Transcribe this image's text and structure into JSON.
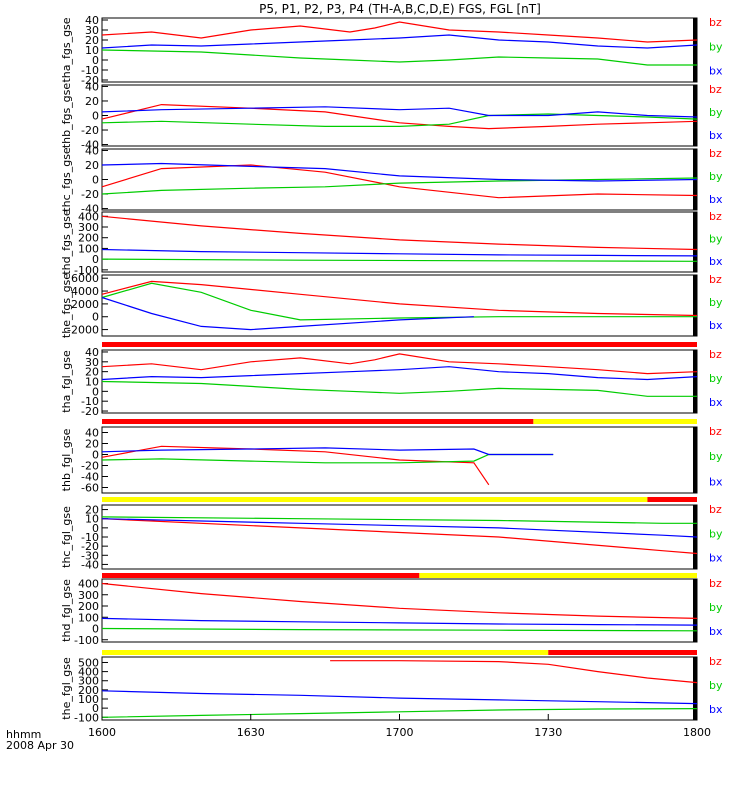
{
  "title": "P5, P1, P2, P3, P4 (TH-A,B,C,D,E) FGS, FGL [nT]",
  "colors": {
    "bx": "#0000ff",
    "by": "#00cc00",
    "bz": "#ff0000",
    "bar_yellow": "#ffff00",
    "bar_red": "#ff0000",
    "bar_black": "#000000"
  },
  "chart_data": {
    "type": "line",
    "title": "P5, P1, P2, P3, P4 (TH-A,B,C,D,E) FGS, FGL [nT]",
    "x_axis": {
      "label_line1": "hhmm",
      "label_line2": "2008 Apr 30",
      "ticks": [
        "1600",
        "1630",
        "1700",
        "1730",
        "1800"
      ],
      "range": [
        0,
        120
      ]
    },
    "panels": [
      {
        "ylabel": "tha_fgs_gse",
        "ylim": [
          -22,
          42
        ],
        "ticks": [
          "40",
          "30",
          "20",
          "10",
          "0",
          "-10",
          "-20"
        ],
        "legend": [
          "bz",
          "by",
          "bx"
        ],
        "series": [
          {
            "name": "bz",
            "color": "#ff0000",
            "x": [
              0,
              10,
              20,
              30,
              40,
              50,
              55,
              60,
              70,
              80,
              90,
              100,
              110,
              120
            ],
            "y": [
              25,
              28,
              22,
              30,
              34,
              28,
              32,
              38,
              30,
              28,
              25,
              22,
              18,
              20
            ]
          },
          {
            "name": "by",
            "color": "#00cc00",
            "x": [
              0,
              10,
              20,
              30,
              40,
              50,
              60,
              70,
              80,
              90,
              100,
              110,
              120
            ],
            "y": [
              10,
              9,
              8,
              5,
              2,
              0,
              -2,
              0,
              3,
              2,
              1,
              -5,
              -5
            ]
          },
          {
            "name": "bx",
            "color": "#0000ff",
            "x": [
              0,
              10,
              20,
              30,
              40,
              50,
              60,
              70,
              80,
              90,
              100,
              110,
              120
            ],
            "y": [
              12,
              15,
              14,
              16,
              18,
              20,
              22,
              25,
              20,
              18,
              14,
              12,
              15
            ]
          }
        ]
      },
      {
        "ylabel": "thb_fgs_gse",
        "ylim": [
          -42,
          42
        ],
        "ticks": [
          "40",
          "20",
          "0",
          "-20",
          "-40"
        ],
        "legend": [
          "bz",
          "by",
          "bx"
        ],
        "series": [
          {
            "name": "bz",
            "color": "#ff0000",
            "x": [
              0,
              12,
              30,
              45,
              60,
              70,
              78,
              90,
              100,
              110,
              120
            ],
            "y": [
              -5,
              15,
              10,
              5,
              -10,
              -15,
              -18,
              -15,
              -12,
              -10,
              -8
            ]
          },
          {
            "name": "by",
            "color": "#00cc00",
            "x": [
              0,
              12,
              30,
              45,
              60,
              70,
              78,
              90,
              100,
              110,
              120
            ],
            "y": [
              -10,
              -8,
              -12,
              -15,
              -15,
              -12,
              0,
              2,
              0,
              -2,
              -5
            ]
          },
          {
            "name": "bx",
            "color": "#0000ff",
            "x": [
              0,
              12,
              30,
              45,
              60,
              70,
              78,
              90,
              100,
              110,
              120
            ],
            "y": [
              5,
              8,
              10,
              12,
              8,
              10,
              0,
              0,
              5,
              0,
              -2
            ]
          }
        ]
      },
      {
        "ylabel": "thc_fgs_gse",
        "ylim": [
          -42,
          42
        ],
        "ticks": [
          "40",
          "20",
          "0",
          "-20",
          "-40"
        ],
        "legend": [
          "bz",
          "by",
          "bx"
        ],
        "series": [
          {
            "name": "bz",
            "color": "#ff0000",
            "x": [
              0,
              12,
              30,
              45,
              60,
              80,
              100,
              120
            ],
            "y": [
              -10,
              15,
              20,
              10,
              -10,
              -25,
              -20,
              -22
            ]
          },
          {
            "name": "by",
            "color": "#00cc00",
            "x": [
              0,
              12,
              30,
              45,
              60,
              80,
              100,
              120
            ],
            "y": [
              -20,
              -15,
              -12,
              -10,
              -5,
              -2,
              0,
              2
            ]
          },
          {
            "name": "bx",
            "color": "#0000ff",
            "x": [
              0,
              12,
              30,
              45,
              60,
              80,
              100,
              120
            ],
            "y": [
              20,
              22,
              18,
              15,
              5,
              0,
              -2,
              0
            ]
          }
        ]
      },
      {
        "ylabel": "thd_fgs_gse",
        "ylim": [
          -120,
          440
        ],
        "ticks": [
          "400",
          "300",
          "200",
          "100",
          "0",
          "-100"
        ],
        "legend": [
          "bz",
          "by",
          "bx"
        ],
        "series": [
          {
            "name": "bz",
            "color": "#ff0000",
            "x": [
              0,
              20,
              40,
              60,
              80,
              100,
              120
            ],
            "y": [
              400,
              310,
              240,
              180,
              140,
              110,
              90
            ]
          },
          {
            "name": "by",
            "color": "#00cc00",
            "x": [
              0,
              40,
              80,
              120
            ],
            "y": [
              0,
              -10,
              -15,
              -20
            ]
          },
          {
            "name": "bx",
            "color": "#0000ff",
            "x": [
              0,
              20,
              40,
              60,
              80,
              100,
              120
            ],
            "y": [
              90,
              70,
              60,
              50,
              40,
              35,
              30
            ]
          }
        ]
      },
      {
        "ylabel": "the_fgs_gse",
        "ylim": [
          -3000,
          6500
        ],
        "ticks": [
          "6000",
          "4000",
          "2000",
          "0",
          "-2000"
        ],
        "legend": [
          "bz",
          "by",
          "bx"
        ],
        "series": [
          {
            "name": "bz",
            "color": "#ff0000",
            "x": [
              0,
              10,
              20,
              40,
              60,
              80,
              100,
              120
            ],
            "y": [
              3500,
              5500,
              5000,
              3500,
              2000,
              1000,
              500,
              200
            ]
          },
          {
            "name": "by",
            "color": "#00cc00",
            "x": [
              0,
              10,
              20,
              30,
              40,
              60,
              80,
              120
            ],
            "y": [
              3000,
              5200,
              3800,
              1000,
              -500,
              -200,
              0,
              0
            ]
          },
          {
            "name": "bx",
            "color": "#0000ff",
            "x": [
              0,
              10,
              20,
              30,
              40,
              60,
              75
            ],
            "y": [
              3000,
              500,
              -1500,
              -2000,
              -1500,
              -500,
              0
            ]
          }
        ]
      },
      {
        "ylabel": "tha_fgl_gse",
        "ylim": [
          -22,
          42
        ],
        "ticks": [
          "40",
          "30",
          "20",
          "10",
          "0",
          "-10",
          "-20"
        ],
        "legend": [
          "bz",
          "by",
          "bx"
        ],
        "series": [
          {
            "name": "bz",
            "color": "#ff0000",
            "x": [
              0,
              10,
              20,
              30,
              40,
              50,
              55,
              60,
              70,
              80,
              90,
              100,
              110,
              120
            ],
            "y": [
              25,
              28,
              22,
              30,
              34,
              28,
              32,
              38,
              30,
              28,
              25,
              22,
              18,
              20
            ]
          },
          {
            "name": "by",
            "color": "#00cc00",
            "x": [
              0,
              10,
              20,
              30,
              40,
              50,
              60,
              70,
              80,
              90,
              100,
              110,
              120
            ],
            "y": [
              10,
              9,
              8,
              5,
              2,
              0,
              -2,
              0,
              3,
              2,
              1,
              -5,
              -5
            ]
          },
          {
            "name": "bx",
            "color": "#0000ff",
            "x": [
              0,
              10,
              20,
              30,
              40,
              50,
              60,
              70,
              80,
              90,
              100,
              110,
              120
            ],
            "y": [
              12,
              15,
              14,
              16,
              18,
              20,
              22,
              25,
              20,
              18,
              14,
              12,
              15
            ]
          }
        ]
      },
      {
        "ylabel": "thb_fgl_gse",
        "ylim": [
          -70,
          50
        ],
        "ticks": [
          "40",
          "20",
          "0",
          "-20",
          "-40",
          "-60"
        ],
        "legend": [
          "bz",
          "by",
          "bx"
        ],
        "series": [
          {
            "name": "bz",
            "color": "#ff0000",
            "x": [
              0,
              12,
              30,
              45,
              60,
              75,
              78
            ],
            "y": [
              -5,
              15,
              10,
              5,
              -10,
              -15,
              -55
            ]
          },
          {
            "name": "by",
            "color": "#00cc00",
            "x": [
              0,
              12,
              30,
              45,
              60,
              75,
              78,
              91
            ],
            "y": [
              -10,
              -8,
              -12,
              -15,
              -15,
              -12,
              0,
              0
            ]
          },
          {
            "name": "bx",
            "color": "#0000ff",
            "x": [
              0,
              12,
              30,
              45,
              60,
              75,
              78,
              91
            ],
            "y": [
              5,
              8,
              10,
              12,
              8,
              10,
              0,
              0
            ]
          }
        ]
      },
      {
        "ylabel": "thc_fgl_gse",
        "ylim": [
          -45,
          25
        ],
        "ticks": [
          "20",
          "10",
          "0",
          "-10",
          "-20",
          "-30",
          "-40"
        ],
        "legend": [
          "bz",
          "by",
          "bx"
        ],
        "series": [
          {
            "name": "bz",
            "color": "#ff0000",
            "x": [
              0,
              40,
              80,
              113,
              120
            ],
            "y": [
              10,
              0,
              -10,
              -25,
              -28
            ]
          },
          {
            "name": "by",
            "color": "#00cc00",
            "x": [
              0,
              40,
              80,
              113,
              120
            ],
            "y": [
              12,
              10,
              8,
              5,
              5
            ]
          },
          {
            "name": "bx",
            "color": "#0000ff",
            "x": [
              0,
              40,
              80,
              113,
              120
            ],
            "y": [
              10,
              5,
              0,
              -8,
              -10
            ]
          }
        ]
      },
      {
        "ylabel": "thd_fgl_gse",
        "ylim": [
          -120,
          440
        ],
        "ticks": [
          "400",
          "300",
          "200",
          "100",
          "0",
          "-100"
        ],
        "legend": [
          "bz",
          "by",
          "bx"
        ],
        "series": [
          {
            "name": "bz",
            "color": "#ff0000",
            "x": [
              0,
              20,
              40,
              60,
              80,
              100,
              120
            ],
            "y": [
              400,
              310,
              240,
              180,
              140,
              110,
              90
            ]
          },
          {
            "name": "by",
            "color": "#00cc00",
            "x": [
              0,
              40,
              80,
              120
            ],
            "y": [
              0,
              -10,
              -15,
              -20
            ]
          },
          {
            "name": "bx",
            "color": "#0000ff",
            "x": [
              0,
              20,
              40,
              60,
              80,
              100,
              120
            ],
            "y": [
              90,
              70,
              60,
              50,
              40,
              35,
              30
            ]
          }
        ]
      },
      {
        "ylabel": "the_fgl_gse",
        "ylim": [
          -130,
          560
        ],
        "ticks": [
          "500",
          "400",
          "300",
          "200",
          "100",
          "0",
          "-100"
        ],
        "legend": [
          "bz",
          "by",
          "bx"
        ],
        "series": [
          {
            "name": "bz",
            "color": "#ff0000",
            "x": [
              46,
              60,
              80,
              90,
              100,
              110,
              120
            ],
            "y": [
              520,
              520,
              510,
              480,
              400,
              330,
              280
            ]
          },
          {
            "name": "by",
            "color": "#00cc00",
            "x": [
              0,
              20,
              40,
              60,
              80,
              100,
              120
            ],
            "y": [
              -100,
              -80,
              -60,
              -40,
              -20,
              -10,
              -5
            ]
          },
          {
            "name": "bx",
            "color": "#0000ff",
            "x": [
              0,
              20,
              40,
              60,
              80,
              100,
              120
            ],
            "y": [
              190,
              160,
              140,
              110,
              90,
              70,
              50
            ]
          }
        ]
      }
    ],
    "status_bars": [
      {
        "segments": [
          {
            "from": 0,
            "to": 120,
            "color": "red"
          }
        ]
      },
      {
        "segments": [
          {
            "from": 0,
            "to": 87,
            "color": "red"
          },
          {
            "from": 87,
            "to": 120,
            "color": "yellow"
          }
        ]
      },
      {
        "segments": [
          {
            "from": 0,
            "to": 110,
            "color": "yellow"
          },
          {
            "from": 110,
            "to": 120,
            "color": "red"
          }
        ]
      },
      {
        "segments": [
          {
            "from": 0,
            "to": 64,
            "color": "red"
          },
          {
            "from": 64,
            "to": 120,
            "color": "yellow"
          }
        ]
      },
      {
        "segments": [
          {
            "from": 0,
            "to": 90,
            "color": "yellow"
          },
          {
            "from": 90,
            "to": 120,
            "color": "red"
          }
        ]
      }
    ]
  }
}
